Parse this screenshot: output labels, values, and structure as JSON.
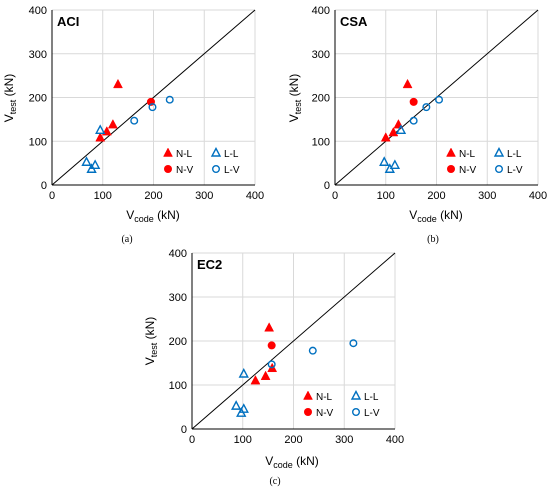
{
  "colors": {
    "red": "#ff0000",
    "blue": "#0070c0",
    "grid": "#d9d9d9",
    "axis": "#000000"
  },
  "legend": {
    "NL": "N-L",
    "LL": "L-L",
    "NV": "N-V",
    "LV": "L-V"
  },
  "chart_data": [
    {
      "type": "scatter",
      "title": "ACI",
      "caption": "(a)",
      "xlabel_main": "V",
      "xlabel_sub": "code",
      "xlabel_unit": " (kN)",
      "ylabel_main": "V",
      "ylabel_sub": "test",
      "ylabel_unit": " (kN)",
      "xlim": [
        0,
        400
      ],
      "ylim": [
        0,
        400
      ],
      "ticks": [
        0,
        100,
        200,
        300,
        400
      ],
      "grid": true,
      "reference_line": "y=x",
      "series": [
        {
          "name": "N-L",
          "points": [
            [
              130,
              230
            ],
            [
              120,
              138
            ],
            [
              108,
              122
            ],
            [
              95,
              108
            ]
          ]
        },
        {
          "name": "L-L",
          "points": [
            [
              95,
              125
            ],
            [
              68,
              52
            ],
            [
              85,
              45
            ],
            [
              78,
              36
            ]
          ]
        },
        {
          "name": "N-V",
          "points": [
            [
              195,
              190
            ]
          ]
        },
        {
          "name": "L-V",
          "points": [
            [
              232,
              195
            ],
            [
              198,
              178
            ],
            [
              162,
              147
            ]
          ]
        }
      ]
    },
    {
      "type": "scatter",
      "title": "CSA",
      "caption": "(b)",
      "xlabel_main": "V",
      "xlabel_sub": "code",
      "xlabel_unit": " (kN)",
      "ylabel_main": "V",
      "ylabel_sub": "test",
      "ylabel_unit": " (kN)",
      "xlim": [
        0,
        400
      ],
      "ylim": [
        0,
        400
      ],
      "ticks": [
        0,
        100,
        200,
        300,
        400
      ],
      "grid": true,
      "reference_line": "y=x",
      "series": [
        {
          "name": "N-L",
          "points": [
            [
              143,
              230
            ],
            [
              125,
              138
            ],
            [
              115,
              120
            ],
            [
              100,
              108
            ]
          ]
        },
        {
          "name": "L-L",
          "points": [
            [
              130,
              125
            ],
            [
              97,
              52
            ],
            [
              118,
              45
            ],
            [
              108,
              36
            ]
          ]
        },
        {
          "name": "N-V",
          "points": [
            [
              155,
              190
            ]
          ]
        },
        {
          "name": "L-V",
          "points": [
            [
              205,
              195
            ],
            [
              180,
              178
            ],
            [
              155,
              147
            ]
          ]
        }
      ]
    },
    {
      "type": "scatter",
      "title": "EC2",
      "caption": "(c)",
      "xlabel_main": "V",
      "xlabel_sub": "code",
      "xlabel_unit": " (kN)",
      "ylabel_main": "V",
      "ylabel_sub": "test",
      "ylabel_unit": " (kN)",
      "xlim": [
        0,
        400
      ],
      "ylim": [
        0,
        400
      ],
      "ticks": [
        0,
        100,
        200,
        300,
        400
      ],
      "grid": true,
      "reference_line": "y=x",
      "series": [
        {
          "name": "N-L",
          "points": [
            [
              152,
              230
            ],
            [
              158,
              138
            ],
            [
              145,
              120
            ],
            [
              125,
              110
            ]
          ]
        },
        {
          "name": "L-L",
          "points": [
            [
              102,
              125
            ],
            [
              87,
              52
            ],
            [
              102,
              45
            ],
            [
              97,
              36
            ]
          ]
        },
        {
          "name": "N-V",
          "points": [
            [
              157,
              190
            ]
          ]
        },
        {
          "name": "L-V",
          "points": [
            [
              318,
              195
            ],
            [
              238,
              178
            ],
            [
              157,
              147
            ]
          ]
        }
      ]
    }
  ]
}
